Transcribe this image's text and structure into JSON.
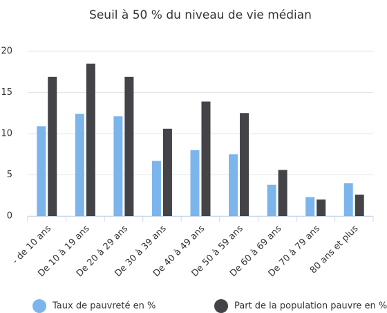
{
  "chart_data": {
    "type": "bar",
    "title": "Seuil à 50 % du niveau de vie médian",
    "categories": [
      "- de 10 ans",
      "De 10 à 19 ans",
      "De 20 à 29 ans",
      "De 30 à 39 ans",
      "De 40 à 49 ans",
      "De 50 à 59 ans",
      "De 60 à 69 ans",
      "De 70 à 79 ans",
      "80 ans et plus"
    ],
    "series": [
      {
        "name": "Taux de pauvreté en %",
        "color": "#7cb5ec",
        "values": [
          10.9,
          12.4,
          12.1,
          6.7,
          8.0,
          7.5,
          3.8,
          2.3,
          4.0
        ]
      },
      {
        "name": "Part de la population pauvre en %",
        "color": "#434348",
        "values": [
          16.9,
          18.5,
          16.9,
          10.6,
          13.9,
          12.5,
          5.6,
          2.0,
          2.6
        ]
      }
    ],
    "ylim": [
      0,
      20
    ],
    "yticks": [
      0,
      5,
      10,
      15,
      20
    ],
    "grid": true,
    "legend": "bottom"
  }
}
